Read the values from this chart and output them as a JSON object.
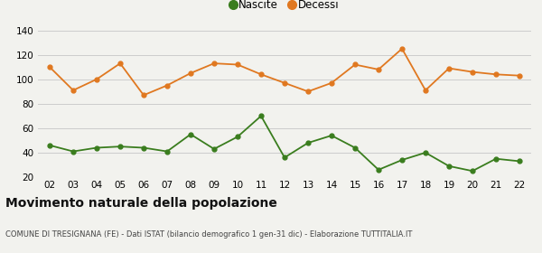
{
  "years": [
    "02",
    "03",
    "04",
    "05",
    "06",
    "07",
    "08",
    "09",
    "10",
    "11",
    "12",
    "13",
    "14",
    "15",
    "16",
    "17",
    "18",
    "19",
    "20",
    "21",
    "22"
  ],
  "nascite": [
    46,
    41,
    44,
    45,
    44,
    41,
    55,
    43,
    53,
    70,
    36,
    48,
    54,
    44,
    26,
    34,
    40,
    29,
    25,
    35,
    33
  ],
  "decessi": [
    110,
    91,
    100,
    113,
    87,
    95,
    105,
    113,
    112,
    104,
    97,
    90,
    97,
    112,
    108,
    125,
    91,
    109,
    106,
    104,
    103
  ],
  "nascite_color": "#3a7d1e",
  "decessi_color": "#e07820",
  "bg_color": "#f2f2ee",
  "grid_color": "#cccccc",
  "ylim": [
    20,
    140
  ],
  "yticks": [
    20,
    40,
    60,
    80,
    100,
    120,
    140
  ],
  "title": "Movimento naturale della popolazione",
  "subtitle": "COMUNE DI TRESIGNANA (FE) - Dati ISTAT (bilancio demografico 1 gen-31 dic) - Elaborazione TUTTITALIA.IT",
  "legend_nascite": "Nascite",
  "legend_decessi": "Decessi",
  "title_fontsize": 10,
  "subtitle_fontsize": 6.0
}
